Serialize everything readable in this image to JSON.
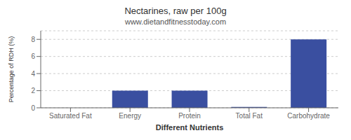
{
  "chart_data": {
    "type": "bar",
    "title": "Nectarines, raw per 100g",
    "subtitle": "www.dietandfitnesstoday.com",
    "xlabel": "Different Nutrients",
    "ylabel": "Percentage of RDH (%)",
    "categories": [
      "Saturated Fat",
      "Energy",
      "Protein",
      "Total Fat",
      "Carbohydrate"
    ],
    "values": [
      0.0,
      2.0,
      2.0,
      0.1,
      8.0
    ],
    "color": "#3a4fa0",
    "ylim": [
      0,
      9
    ],
    "yticks": [
      0,
      2,
      4,
      6,
      8
    ],
    "grid": true
  }
}
